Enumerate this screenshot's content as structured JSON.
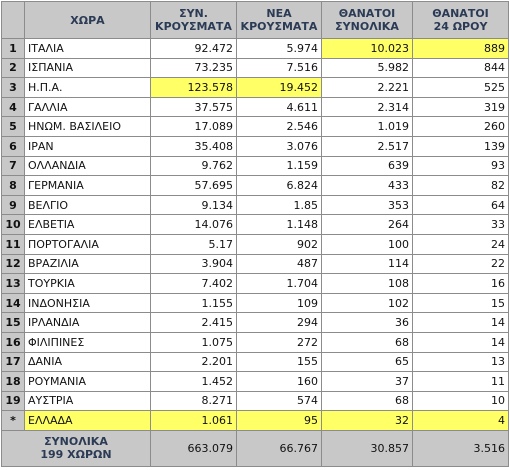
{
  "table": {
    "header": {
      "country": "ΧΩΡΑ",
      "columns": [
        [
          "ΣΥΝ.",
          "ΚΡΟΥΣΜΑΤΑ"
        ],
        [
          "ΝΕΑ",
          "ΚΡΟΥΣΜΑΤΑ"
        ],
        [
          "ΘΑΝΑΤΟΙ",
          "ΣΥΝΟΛΙΚΑ"
        ],
        [
          "ΘΑΝΑΤΟΙ",
          "24 ΩΡΟΥ"
        ]
      ]
    },
    "rows": [
      [
        "1",
        "ΙΤΑΛΙΑ",
        "92.472",
        "5.974",
        "10.023",
        "889"
      ],
      [
        "2",
        "ΙΣΠΑΝΙΑ",
        "73.235",
        "7.516",
        "5.982",
        "844"
      ],
      [
        "3",
        "Η.Π.Α.",
        "123.578",
        "19.452",
        "2.221",
        "525"
      ],
      [
        "4",
        "ΓΑΛΛΙΑ",
        "37.575",
        "4.611",
        "2.314",
        "319"
      ],
      [
        "5",
        "ΗΝΩΜ. ΒΑΣΙΛΕΙΟ",
        "17.089",
        "2.546",
        "1.019",
        "260"
      ],
      [
        "6",
        "ΙΡΑΝ",
        "35.408",
        "3.076",
        "2.517",
        "139"
      ],
      [
        "7",
        "ΟΛΛΑΝΔΙΑ",
        "9.762",
        "1.159",
        "639",
        "93"
      ],
      [
        "8",
        "ΓΕΡΜΑΝΙΑ",
        "57.695",
        "6.824",
        "433",
        "82"
      ],
      [
        "9",
        "ΒΕΛΓΙΟ",
        "9.134",
        "1.85",
        "353",
        "64"
      ],
      [
        "10",
        "ΕΛΒΕΤΙΑ",
        "14.076",
        "1.148",
        "264",
        "33"
      ],
      [
        "11",
        "ΠΟΡΤΟΓΑΛΙΑ",
        "5.17",
        "902",
        "100",
        "24"
      ],
      [
        "12",
        "ΒΡΑΖΙΛΙΑ",
        "3.904",
        "487",
        "114",
        "22"
      ],
      [
        "13",
        "ΤΟΥΡΚΙΑ",
        "7.402",
        "1.704",
        "108",
        "16"
      ],
      [
        "14",
        "ΙΝΔΟΝΗΣΙΑ",
        "1.155",
        "109",
        "102",
        "15"
      ],
      [
        "15",
        "ΙΡΛΑΝΔΙΑ",
        "2.415",
        "294",
        "36",
        "14"
      ],
      [
        "16",
        "ΦΙΛΙΠΙΝΕΣ",
        "1.075",
        "272",
        "68",
        "14"
      ],
      [
        "17",
        "ΔΑΝΙΑ",
        "2.201",
        "155",
        "65",
        "13"
      ],
      [
        "18",
        "ΡΟΥΜΑΝΙΑ",
        "1.452",
        "160",
        "37",
        "11"
      ],
      [
        "19",
        "ΑΥΣΤΡΙΑ",
        "8.271",
        "574",
        "68",
        "10"
      ],
      [
        "*",
        "ΕΛΛΑΔΑ",
        "1.061",
        "95",
        "32",
        "4"
      ]
    ],
    "footer": {
      "label": [
        "ΣΥΝΟΛΙΚΑ",
        "199 ΧΩΡΩΝ"
      ],
      "values": [
        "663.079",
        "66.767",
        "30.857",
        "3.516"
      ]
    }
  }
}
